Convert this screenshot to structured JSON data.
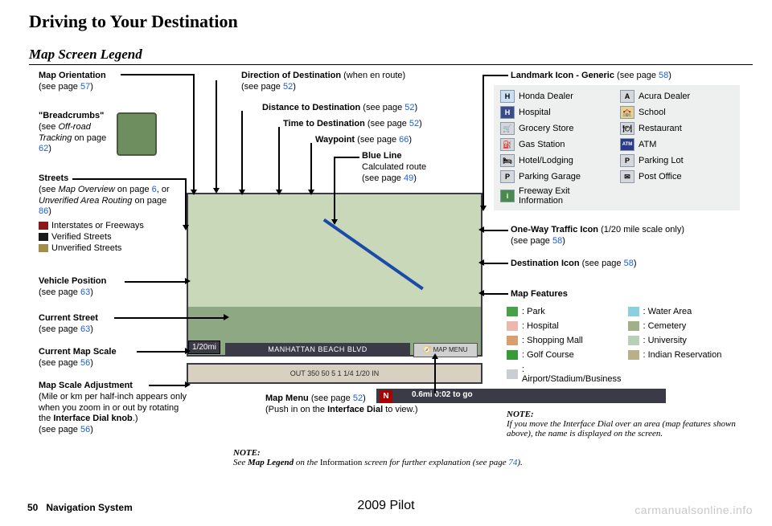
{
  "title": "Driving to Your Destination",
  "section": "Map Screen Legend",
  "callouts": {
    "map_orientation": {
      "label": "Map Orientation",
      "page": "57"
    },
    "breadcrumbs": {
      "label": "\"Breadcrumbs\"",
      "detail_pre": "(see ",
      "detail_italic": "Off-road Tracking",
      "detail_post": " on page ",
      "page": "62"
    },
    "streets": {
      "label": "Streets",
      "detail1_italic": "Map Overview",
      "detail1_page": "6",
      "detail2_italic": "Unverified Area Routing",
      "detail2_page": "86",
      "legend": [
        {
          "color": "#8a1719",
          "label": "Interstates or Freeways"
        },
        {
          "color": "#1a1a1a",
          "label": "Verified Streets"
        },
        {
          "color": "#a28e4a",
          "label": "Unverified Streets"
        }
      ]
    },
    "vehicle_position": {
      "label": "Vehicle Position",
      "page": "63"
    },
    "current_street": {
      "label": "Current Street",
      "page": "63"
    },
    "current_map_scale": {
      "label": "Current Map Scale",
      "page": "56"
    },
    "map_scale_adjustment": {
      "label": "Map Scale Adjustment",
      "detail": "(Mile or km per half-inch appears only when you zoom in or out by rotating the ",
      "bold": "Interface Dial knob",
      "detail2": ".)",
      "page": "56"
    },
    "direction": {
      "label": "Direction of Destination",
      "suffix": " (when en route)",
      "page": "52"
    },
    "distance": {
      "label": "Distance to Destination",
      "page": "52"
    },
    "time": {
      "label": "Time to Destination",
      "page": "52"
    },
    "waypoint": {
      "label": "Waypoint",
      "page": "66"
    },
    "blue_line": {
      "label": "Blue Line",
      "detail": "Calculated route",
      "page": "49"
    },
    "map_menu": {
      "label": "Map Menu",
      "page": "52",
      "detail": "(Push in on the ",
      "bold": "Interface Dial",
      "detail2": " to view.)"
    },
    "landmark": {
      "label": "Landmark Icon - Generic",
      "page": "58"
    },
    "one_way": {
      "label": "One-Way Traffic Icon",
      "suffix": " (1/20 mile scale only)",
      "page": "58"
    },
    "destination_icon": {
      "label": "Destination Icon",
      "page": "58"
    },
    "map_features": {
      "label": "Map Features"
    }
  },
  "landmarks": [
    {
      "icon": "H",
      "bg": "#cce0f5",
      "label": "Honda Dealer"
    },
    {
      "icon": "A",
      "bg": "#d5d7da",
      "label": "Acura Dealer"
    },
    {
      "icon": "H",
      "bg": "#3a4a8a",
      "color": "#fff",
      "label": "Hospital"
    },
    {
      "icon": "🏫",
      "bg": "#e8d090",
      "label": "School"
    },
    {
      "icon": "🛒",
      "bg": "#d5d7da",
      "label": "Grocery Store"
    },
    {
      "icon": "🍽",
      "bg": "#d5d7da",
      "label": "Restaurant"
    },
    {
      "icon": "⛽",
      "bg": "#d5d7da",
      "label": "Gas Station"
    },
    {
      "icon": "ATM",
      "bg": "#2a3a8a",
      "color": "#fff",
      "label": "ATM"
    },
    {
      "icon": "🛏",
      "bg": "#d5d7da",
      "label": "Hotel/Lodging"
    },
    {
      "icon": "P",
      "bg": "#d5d7da",
      "label": "Parking Lot"
    },
    {
      "icon": "P",
      "bg": "#d5d7da",
      "label": "Parking Garage"
    },
    {
      "icon": "✉",
      "bg": "#d5d7da",
      "label": "Post Office"
    },
    {
      "icon": "i",
      "bg": "#4a8a4a",
      "color": "#fff",
      "label": "Freeway Exit Information"
    }
  ],
  "features": [
    {
      "color": "#4aa04a",
      "label": ": Park"
    },
    {
      "color": "#8ad0e0",
      "label": ": Water Area"
    },
    {
      "color": "#eab8b0",
      "label": ": Hospital"
    },
    {
      "color": "#a0b088",
      "label": ": Cemetery"
    },
    {
      "color": "#d8a070",
      "label": ": Shopping Mall"
    },
    {
      "color": "#b8d0b8",
      "label": ": University"
    },
    {
      "color": "#3a9a3a",
      "label": ": Golf Course"
    },
    {
      "color": "#b8b088",
      "label": ": Indian Reservation"
    },
    {
      "color": "#cacdd2",
      "label": ": Airport/Stadium/Business"
    }
  ],
  "note_bottom": {
    "pre": "See ",
    "bold": "Map Legend ",
    "italic": "on the ",
    "mid": "Information ",
    "italic2": "screen for further explanation (see page ",
    "page": "74",
    "post": ")."
  },
  "note_right": {
    "label": "NOTE:",
    "text": "If you move the Interface Dial over an area (map features shown above), the name is displayed on the screen."
  },
  "map": {
    "n": "N",
    "dist": "0.6mi  0:02 to go",
    "street": "MANHATTAN BEACH BLVD",
    "menu": "🧭 MAP MENU",
    "scale_tag1": "1/20mi",
    "scale_tag2": "1/20mi",
    "scale_ticks": "OUT  350    50     5     1    1/4   1/20  IN"
  },
  "footer": {
    "page_num": "50",
    "section": "Navigation System",
    "vehicle": "2009  Pilot",
    "watermark": "carmanualsonline.info"
  }
}
